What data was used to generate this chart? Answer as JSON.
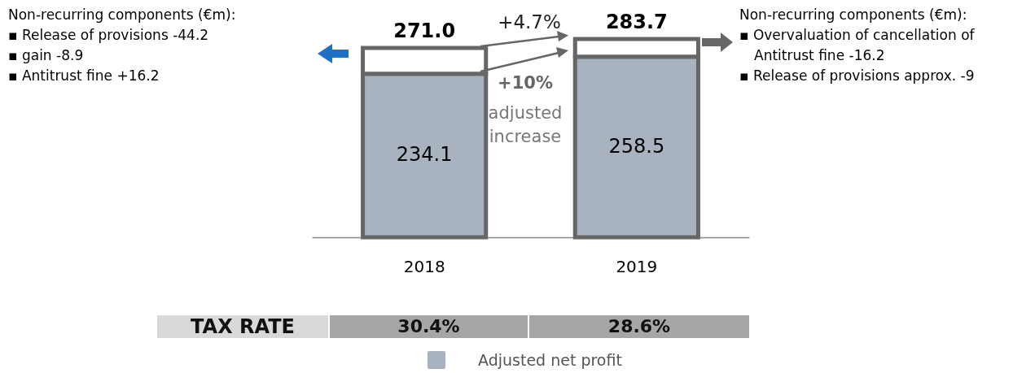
{
  "chart_data": {
    "type": "bar",
    "stacked": true,
    "categories": [
      "2018",
      "2019"
    ],
    "series": [
      {
        "name": "Adjusted net profit",
        "color": "#a9b3bf",
        "values": [
          234.1,
          258.5
        ],
        "value_labels": [
          "234.1",
          "258.5"
        ]
      },
      {
        "color": "#ffffff",
        "values": [
          36.9,
          25.2
        ]
      }
    ],
    "totals": [
      "271.0",
      "283.7"
    ],
    "legend": "bottom",
    "annotations": [
      "Non-recurring components (€m):",
      "▪ Release of provisions -44.2",
      "▪ gain -8.9",
      "▪ Antitrust fine +16.2",
      "Non-recurring components (€m):",
      "▪ Overvaluation of cancellation of Antitrust fine -16.2",
      "▪ Release of provisions approx. -9",
      "+4.7%",
      "+10%",
      "adjusted",
      "increase",
      "TAX RATE",
      "30.4%",
      "28.6%"
    ]
  }
}
